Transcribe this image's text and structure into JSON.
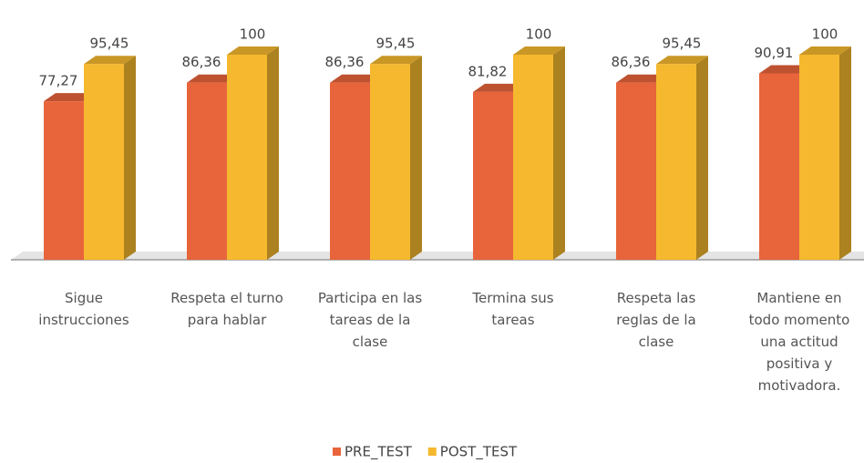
{
  "chart_data": {
    "type": "bar",
    "categories": [
      "Sigue instrucciones",
      "Respeta el turno para hablar",
      "Participa en las tareas de la clase",
      "Termina sus tareas",
      "Respeta las reglas de la clase",
      "Mantiene en todo momento una actitud positiva y motivadora."
    ],
    "series": [
      {
        "name": "PRE_TEST",
        "color": "#e8643a",
        "values": [
          77.27,
          86.36,
          86.36,
          81.82,
          86.36,
          90.91
        ],
        "value_labels": [
          "77,27",
          "86,36",
          "86,36",
          "81,82",
          "86,36",
          "90,91"
        ]
      },
      {
        "name": "POST_TEST",
        "color": "#f5b82e",
        "values": [
          95.45,
          100,
          95.45,
          100,
          95.45,
          100
        ],
        "value_labels": [
          "95,45",
          "100",
          "95,45",
          "100",
          "95,45",
          "100"
        ]
      }
    ],
    "ylim": [
      0,
      100
    ],
    "legend": "bottom"
  }
}
